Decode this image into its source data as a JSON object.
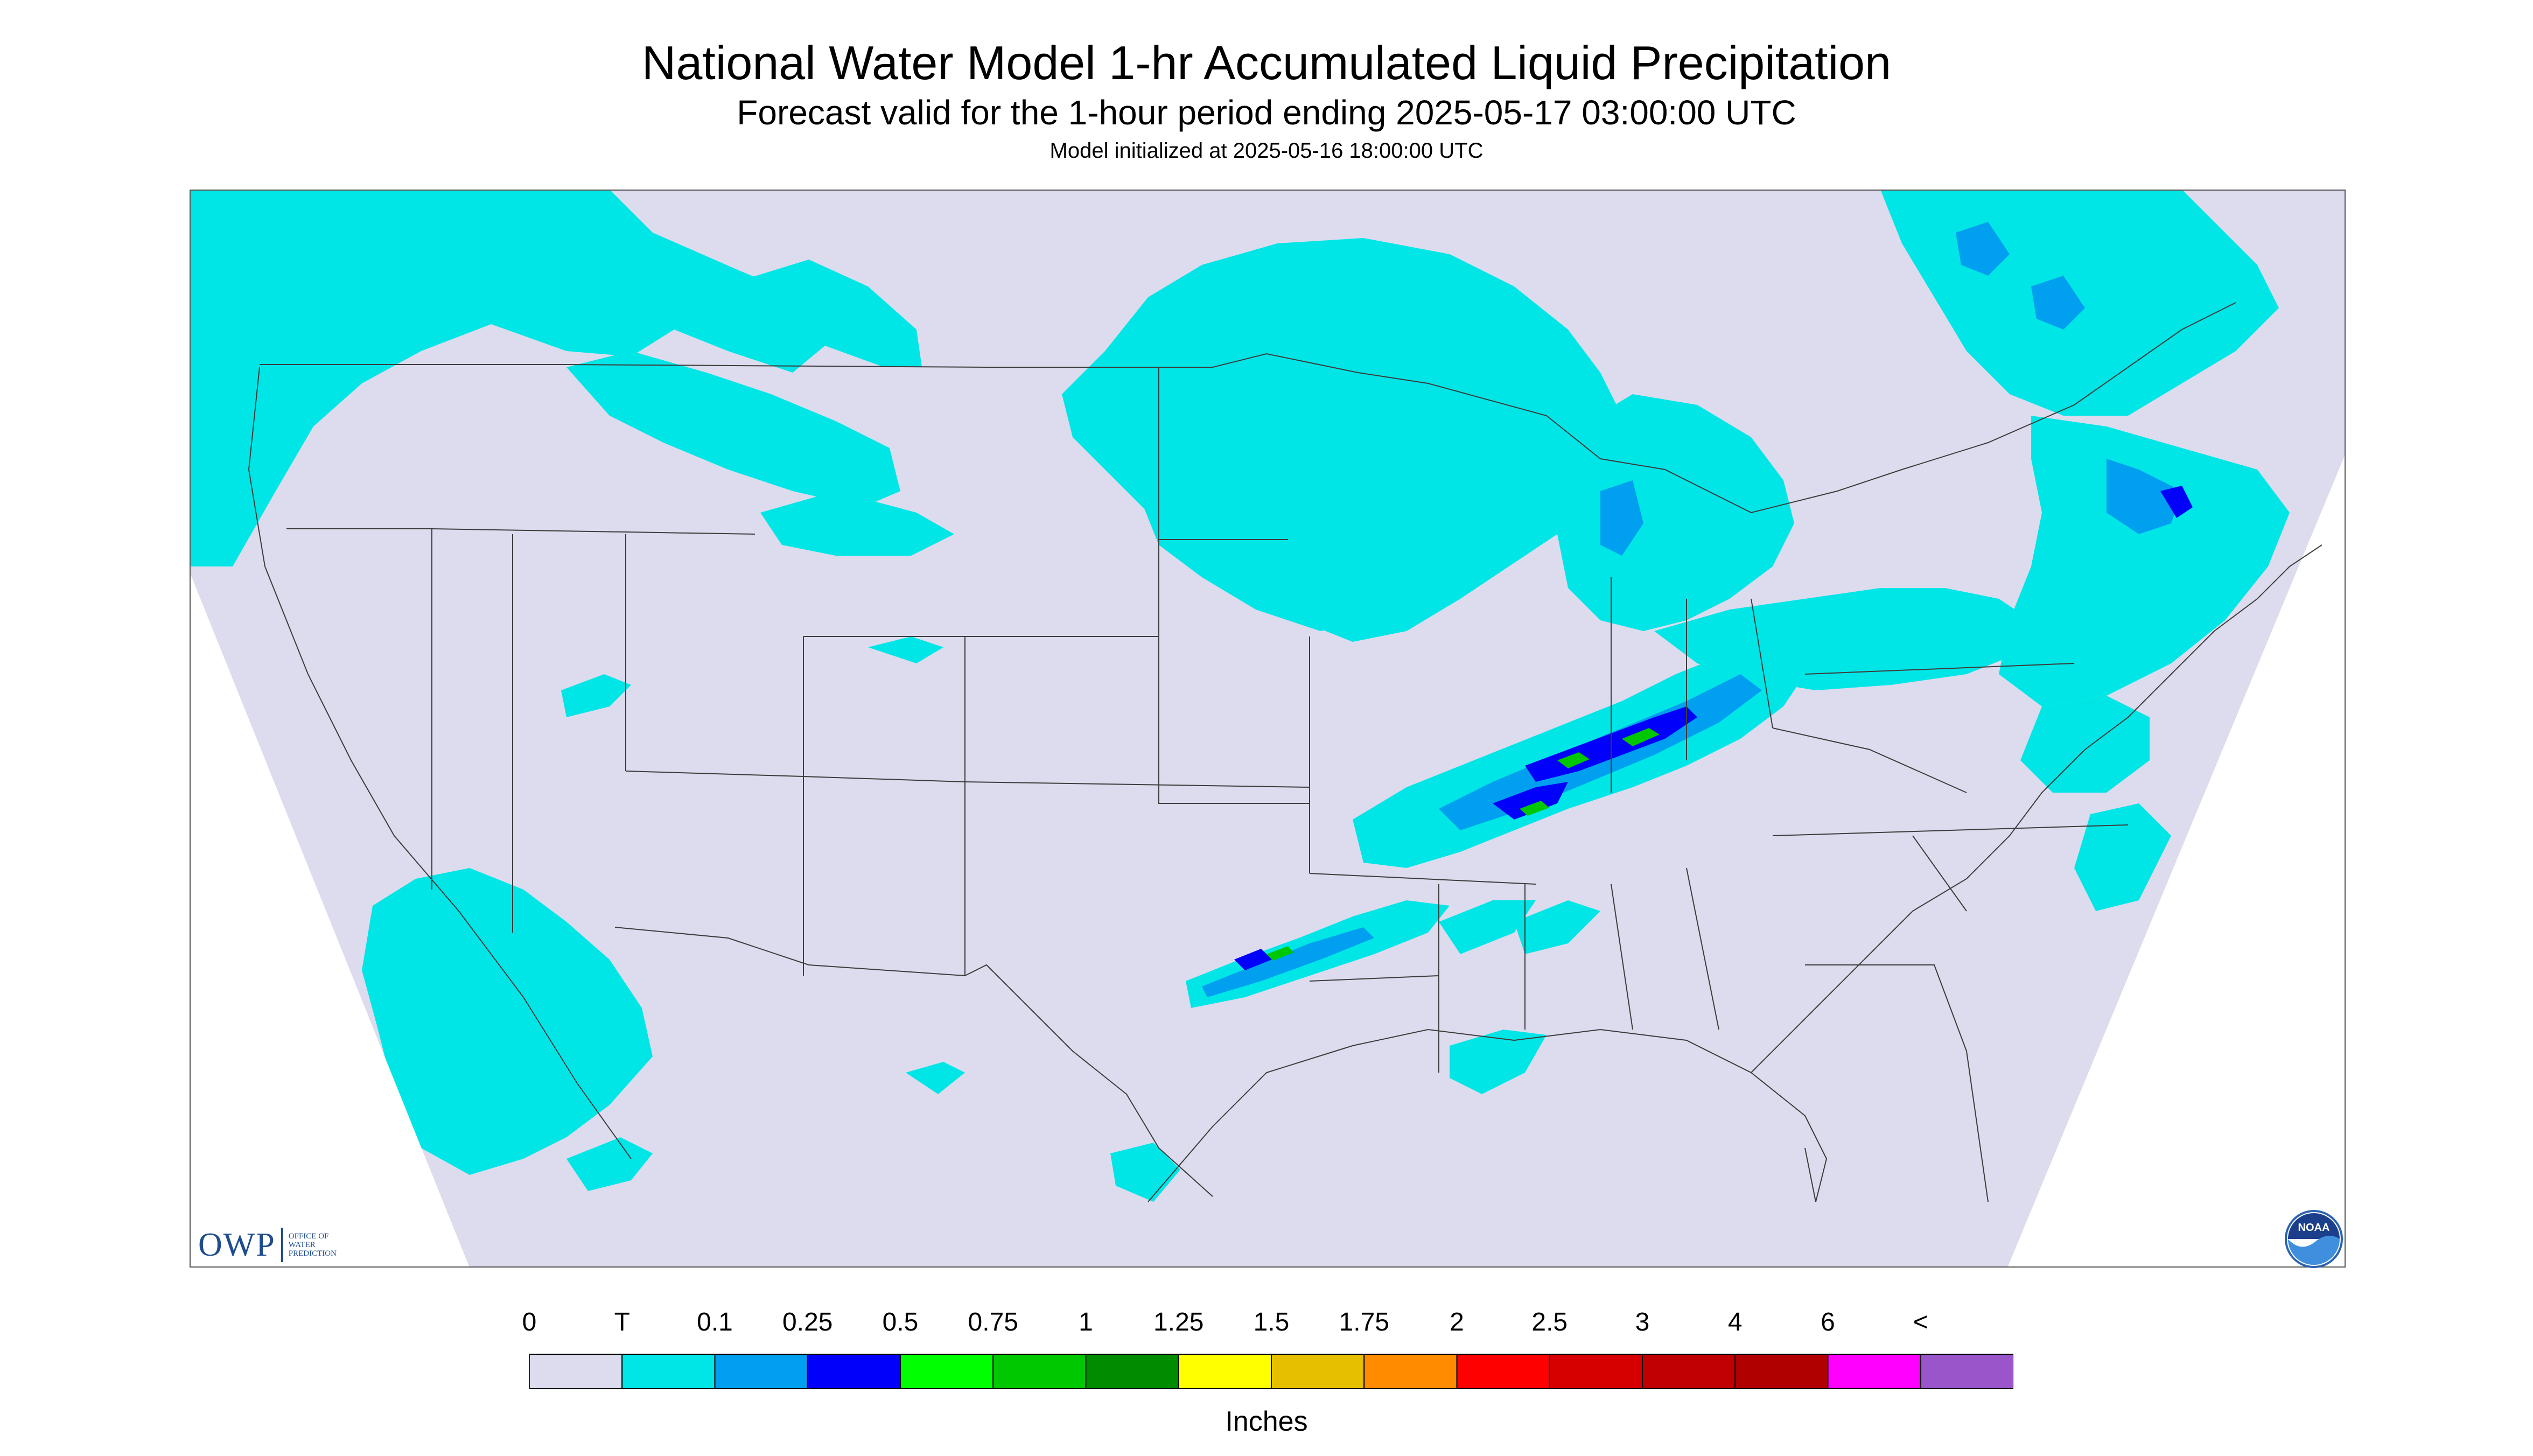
{
  "title": "National Water Model 1-hr Accumulated Liquid Precipitation",
  "subtitle": "Forecast valid for the 1-hour period ending 2025-05-17 03:00:00 UTC",
  "init_text": "Model initialized at 2025-05-16 18:00:00 UTC",
  "legend": {
    "labels": [
      "0",
      "T",
      "0.1",
      "0.25",
      "0.5",
      "0.75",
      "1",
      "1.25",
      "1.5",
      "1.75",
      "2",
      "2.5",
      "3",
      "4",
      "6",
      "<"
    ],
    "colors": [
      "#dcdcee",
      "#00e6e6",
      "#009fef",
      "#0000fb",
      "#00ff00",
      "#00c800",
      "#008c00",
      "#ffff00",
      "#e6c000",
      "#ff8c00",
      "#ff0000",
      "#d70000",
      "#c00000",
      "#b00000",
      "#ff00ff",
      "#9955c9"
    ],
    "units": "Inches"
  },
  "logos": {
    "owp_text": "OWP",
    "owp_subtext": [
      "OFFICE OF",
      "WATER",
      "PREDICTION"
    ],
    "noaa_text": "NOAA"
  },
  "map": {
    "background": "#dcdcee",
    "trace_color": "#00e6e6",
    "light_color": "#009fef",
    "heavy_color": "#0000fb",
    "core_color": "#00c800"
  }
}
